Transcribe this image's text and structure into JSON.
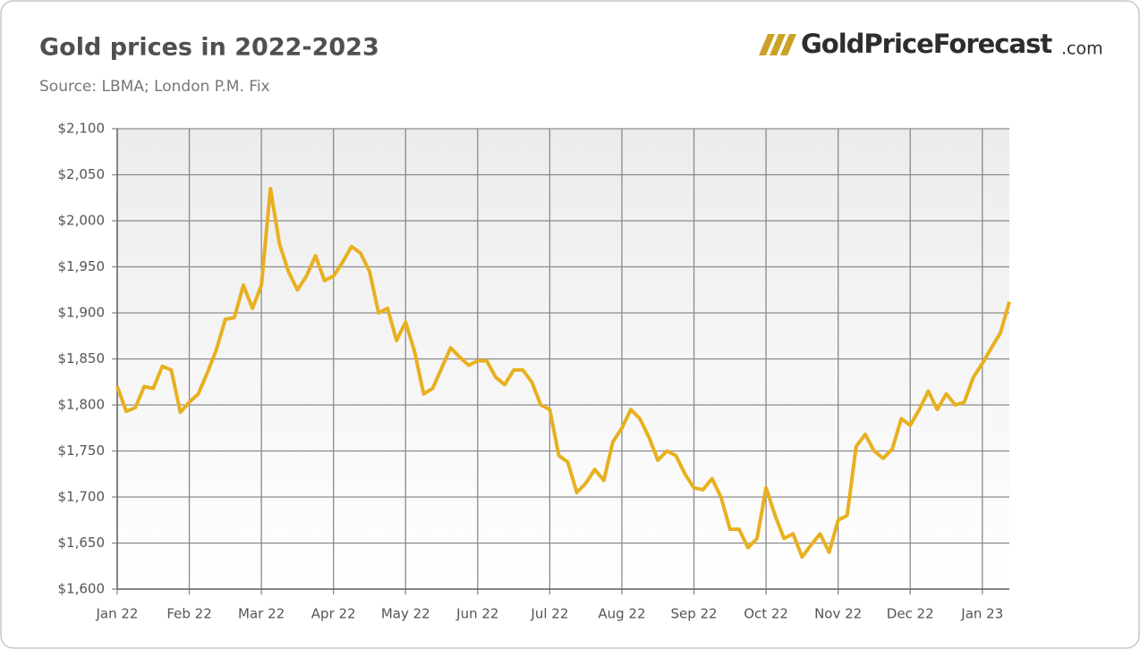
{
  "chart_data": {
    "type": "line",
    "title": "Gold prices in 2022-2023",
    "subtitle": "Source: LBMA; London P.M. Fix",
    "logo": "GoldPriceForecast",
    "logo_suffix": ".com",
    "categories": [
      "Jan 22",
      null,
      null,
      null,
      null,
      null,
      null,
      null,
      "Feb 22",
      null,
      null,
      null,
      null,
      null,
      null,
      null,
      "Mar 22",
      null,
      null,
      null,
      null,
      null,
      null,
      null,
      "Apr 22",
      null,
      null,
      null,
      null,
      null,
      null,
      null,
      "May 22",
      null,
      null,
      null,
      null,
      null,
      null,
      null,
      "Jun 22",
      null,
      null,
      null,
      null,
      null,
      null,
      null,
      "Jul 22",
      null,
      null,
      null,
      null,
      null,
      null,
      null,
      "Aug 22",
      null,
      null,
      null,
      null,
      null,
      null,
      null,
      "Sep 22",
      null,
      null,
      null,
      null,
      null,
      null,
      null,
      "Oct 22",
      null,
      null,
      null,
      null,
      null,
      null,
      null,
      "Nov 22",
      null,
      null,
      null,
      null,
      null,
      null,
      null,
      "Dec 22",
      null,
      null,
      null,
      null,
      null,
      null,
      null,
      "Jan 23",
      null,
      null,
      null
    ],
    "series": [
      {
        "name": "Gold price",
        "color": "#e8b020",
        "values": [
          1820,
          1793,
          1797,
          1820,
          1818,
          1842,
          1838,
          1792,
          1803,
          1812,
          1835,
          1860,
          1893,
          1895,
          1930,
          1905,
          1930,
          2035,
          1975,
          1945,
          1925,
          1940,
          1962,
          1935,
          1940,
          1955,
          1972,
          1965,
          1945,
          1900,
          1905,
          1870,
          1890,
          1858,
          1812,
          1818,
          1840,
          1862,
          1852,
          1843,
          1848,
          1848,
          1830,
          1822,
          1838,
          1838,
          1825,
          1800,
          1795,
          1745,
          1738,
          1705,
          1715,
          1730,
          1718,
          1760,
          1775,
          1795,
          1785,
          1765,
          1740,
          1750,
          1745,
          1725,
          1710,
          1708,
          1720,
          1700,
          1665,
          1665,
          1645,
          1655,
          1710,
          1680,
          1655,
          1660,
          1635,
          1648,
          1660,
          1640,
          1675,
          1680,
          1755,
          1768,
          1750,
          1742,
          1752,
          1785,
          1778,
          1795,
          1815,
          1795,
          1812,
          1800,
          1803,
          1830,
          1845,
          1862,
          1878,
          1912
        ]
      }
    ],
    "ylim": [
      1600,
      2100
    ],
    "yticks": [
      {
        "value": 1600,
        "label": "$1,600"
      },
      {
        "value": 1650,
        "label": "$1,650"
      },
      {
        "value": 1700,
        "label": "$1,700"
      },
      {
        "value": 1750,
        "label": "$1,750"
      },
      {
        "value": 1800,
        "label": "$1,800"
      },
      {
        "value": 1850,
        "label": "$1,850"
      },
      {
        "value": 1900,
        "label": "$1,900"
      },
      {
        "value": 1950,
        "label": "$1,950"
      },
      {
        "value": 2000,
        "label": "$2,000"
      },
      {
        "value": 2050,
        "label": "$2,050"
      },
      {
        "value": 2100,
        "label": "$2,100"
      }
    ],
    "grid": true
  }
}
